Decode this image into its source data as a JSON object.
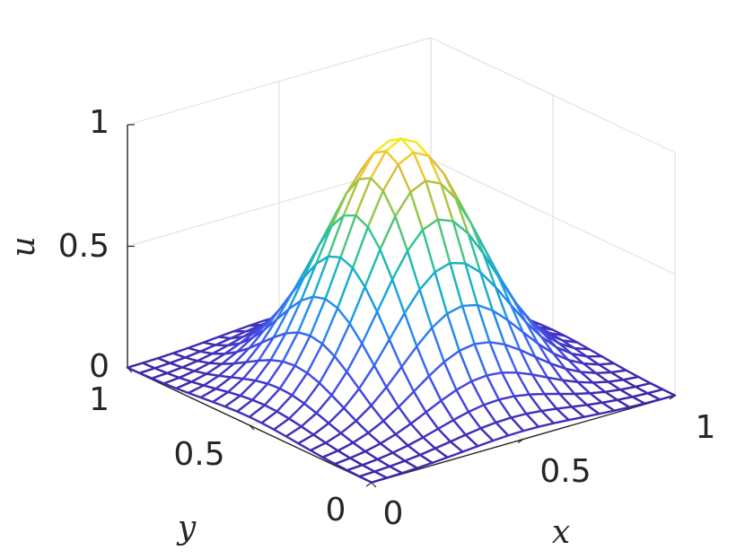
{
  "chart_data": {
    "type": "surface",
    "function": "u(x, y) = exp(-13.5 * ((x - 0.5)^2 + (y - 0.5)^2))",
    "grid": {
      "nx": 21,
      "ny": 21,
      "x_range": [
        0,
        1
      ],
      "y_range": [
        0,
        1
      ]
    },
    "peak": {
      "x": 0.5,
      "y": 0.5,
      "u": 1.0
    },
    "xlim": [
      0,
      1
    ],
    "ylim": [
      0,
      1
    ],
    "zlim": [
      0,
      1
    ],
    "x_ticks": [
      "0",
      "0.5",
      "1"
    ],
    "y_ticks": [
      "0",
      "0.5",
      "1"
    ],
    "z_ticks": [
      "0",
      "0.5",
      "1"
    ],
    "xlabel": "x",
    "ylabel": "y",
    "zlabel": "u",
    "grid_on": true,
    "colormap": "parula"
  }
}
